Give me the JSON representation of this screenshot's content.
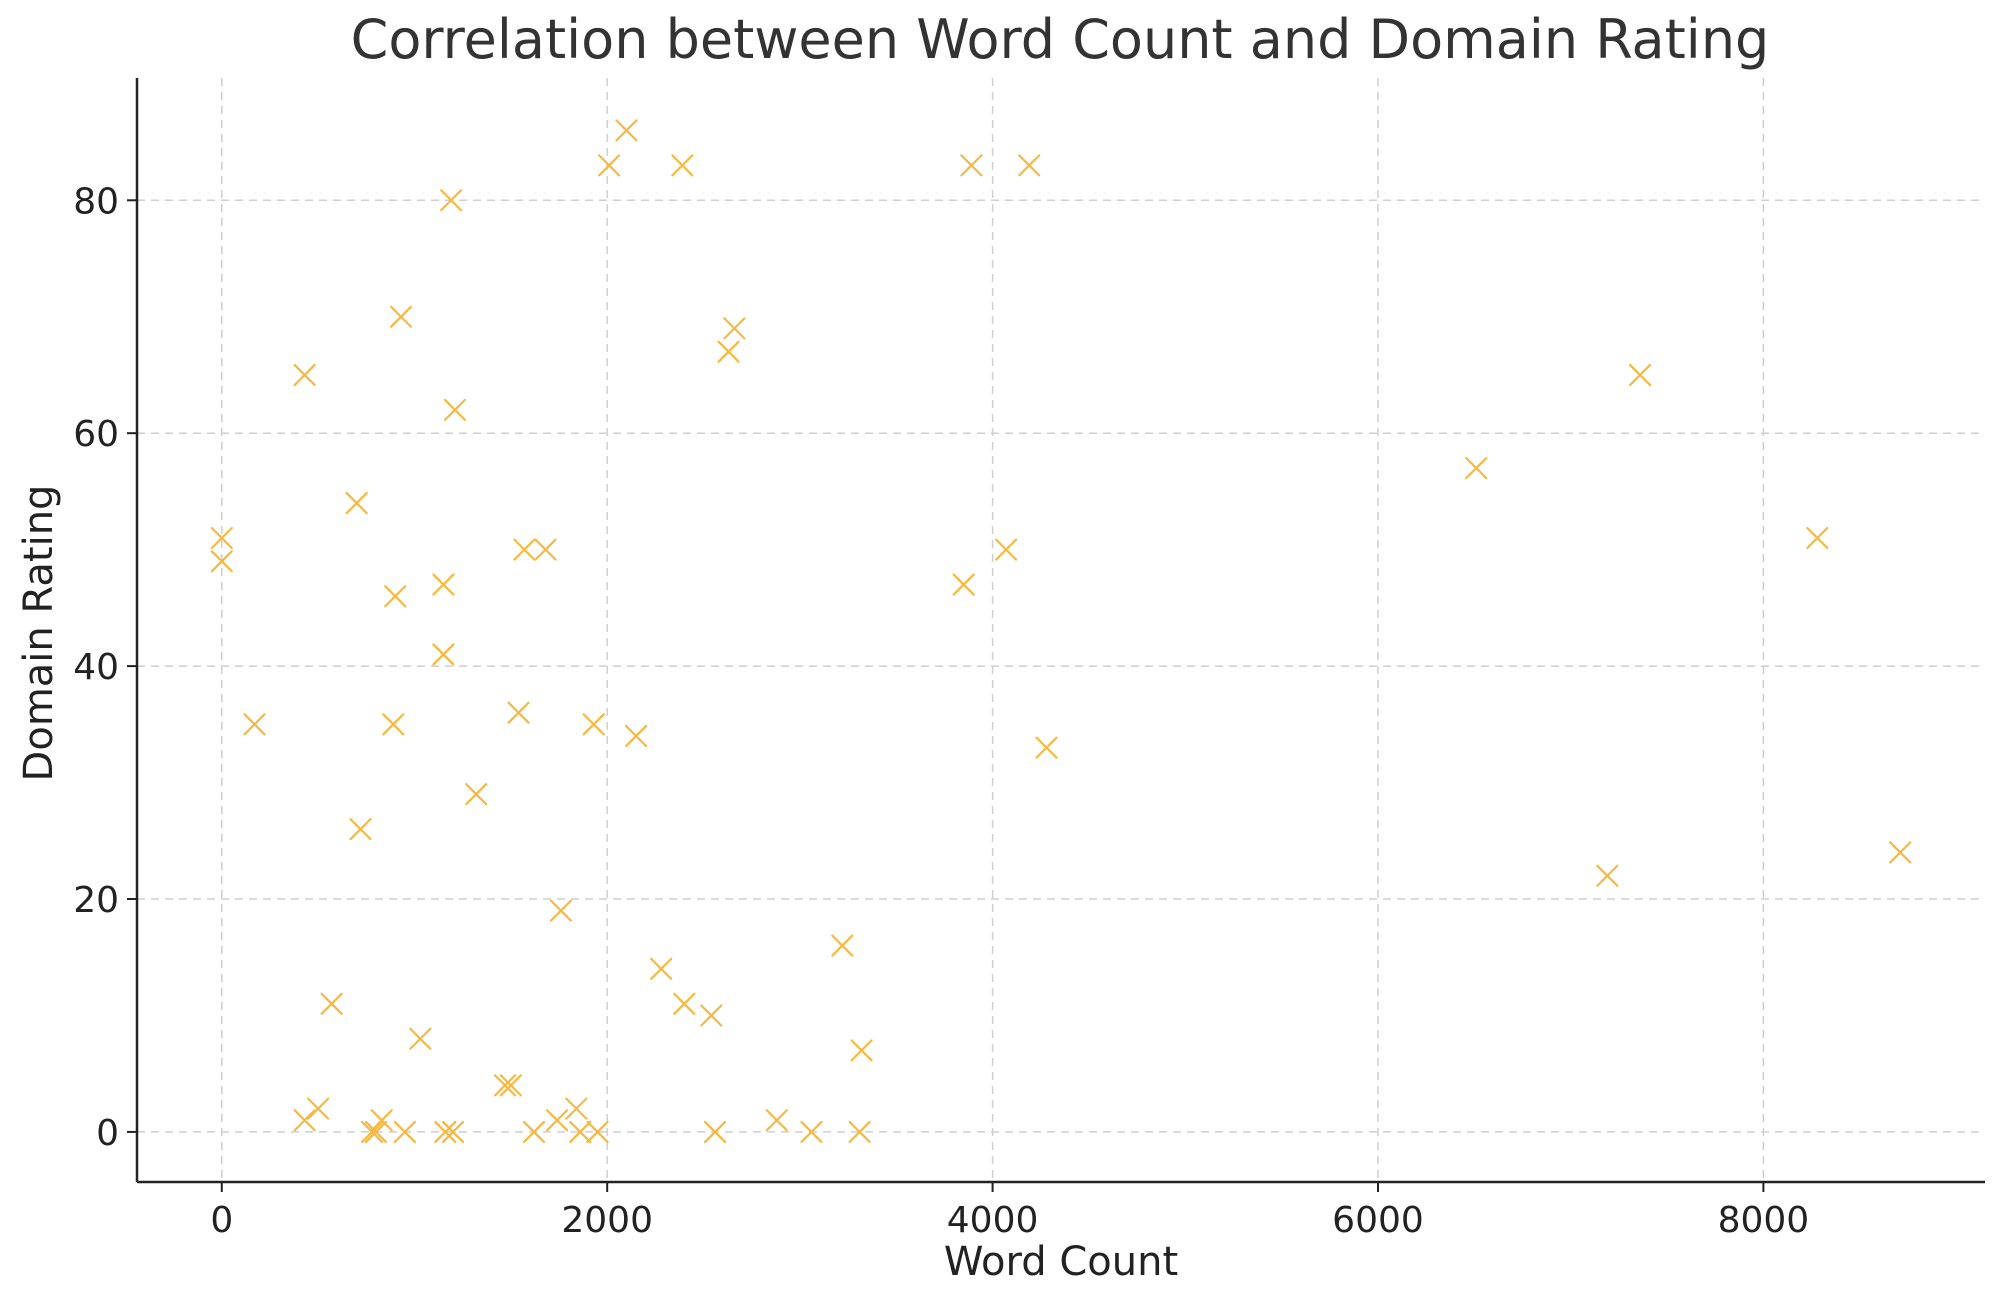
{
  "chart_data": {
    "type": "scatter",
    "title": "Correlation between Word Count and Domain Rating",
    "xlabel": "Word Count",
    "ylabel": "Domain Rating",
    "xlim": [
      -440,
      9150
    ],
    "ylim": [
      -4.3,
      90.5
    ],
    "xticks": [
      0,
      2000,
      4000,
      6000,
      8000
    ],
    "yticks": [
      0,
      20,
      40,
      60,
      80
    ],
    "grid": true,
    "marker": "x",
    "color": "#f5b841",
    "series": [
      {
        "points": [
          [
            0,
            51
          ],
          [
            0,
            49
          ],
          [
            170,
            35
          ],
          [
            430,
            65
          ],
          [
            430,
            1
          ],
          [
            500,
            2
          ],
          [
            570,
            11
          ],
          [
            700,
            54
          ],
          [
            720,
            26
          ],
          [
            780,
            0
          ],
          [
            800,
            0
          ],
          [
            830,
            1
          ],
          [
            890,
            35
          ],
          [
            900,
            46
          ],
          [
            930,
            70
          ],
          [
            950,
            0
          ],
          [
            1030,
            8
          ],
          [
            1150,
            47
          ],
          [
            1150,
            41
          ],
          [
            1160,
            0
          ],
          [
            1190,
            80
          ],
          [
            1200,
            0
          ],
          [
            1210,
            62
          ],
          [
            1320,
            29
          ],
          [
            1470,
            4
          ],
          [
            1500,
            4
          ],
          [
            1540,
            36
          ],
          [
            1570,
            50
          ],
          [
            1620,
            0
          ],
          [
            1680,
            50
          ],
          [
            1740,
            1
          ],
          [
            1760,
            19
          ],
          [
            1840,
            2
          ],
          [
            1860,
            0
          ],
          [
            1930,
            35
          ],
          [
            1950,
            0
          ],
          [
            2010,
            83
          ],
          [
            2100,
            86
          ],
          [
            2150,
            34
          ],
          [
            2280,
            14
          ],
          [
            2390,
            83
          ],
          [
            2400,
            11
          ],
          [
            2540,
            10
          ],
          [
            2560,
            0
          ],
          [
            2630,
            67
          ],
          [
            2660,
            69
          ],
          [
            2880,
            1
          ],
          [
            3060,
            0
          ],
          [
            3220,
            16
          ],
          [
            3310,
            0
          ],
          [
            3320,
            7
          ],
          [
            3850,
            47
          ],
          [
            3890,
            83
          ],
          [
            4070,
            50
          ],
          [
            4190,
            83
          ],
          [
            4280,
            33
          ],
          [
            6510,
            57
          ],
          [
            7190,
            22
          ],
          [
            7360,
            65
          ],
          [
            8280,
            51
          ],
          [
            8710,
            24
          ]
        ]
      }
    ]
  }
}
